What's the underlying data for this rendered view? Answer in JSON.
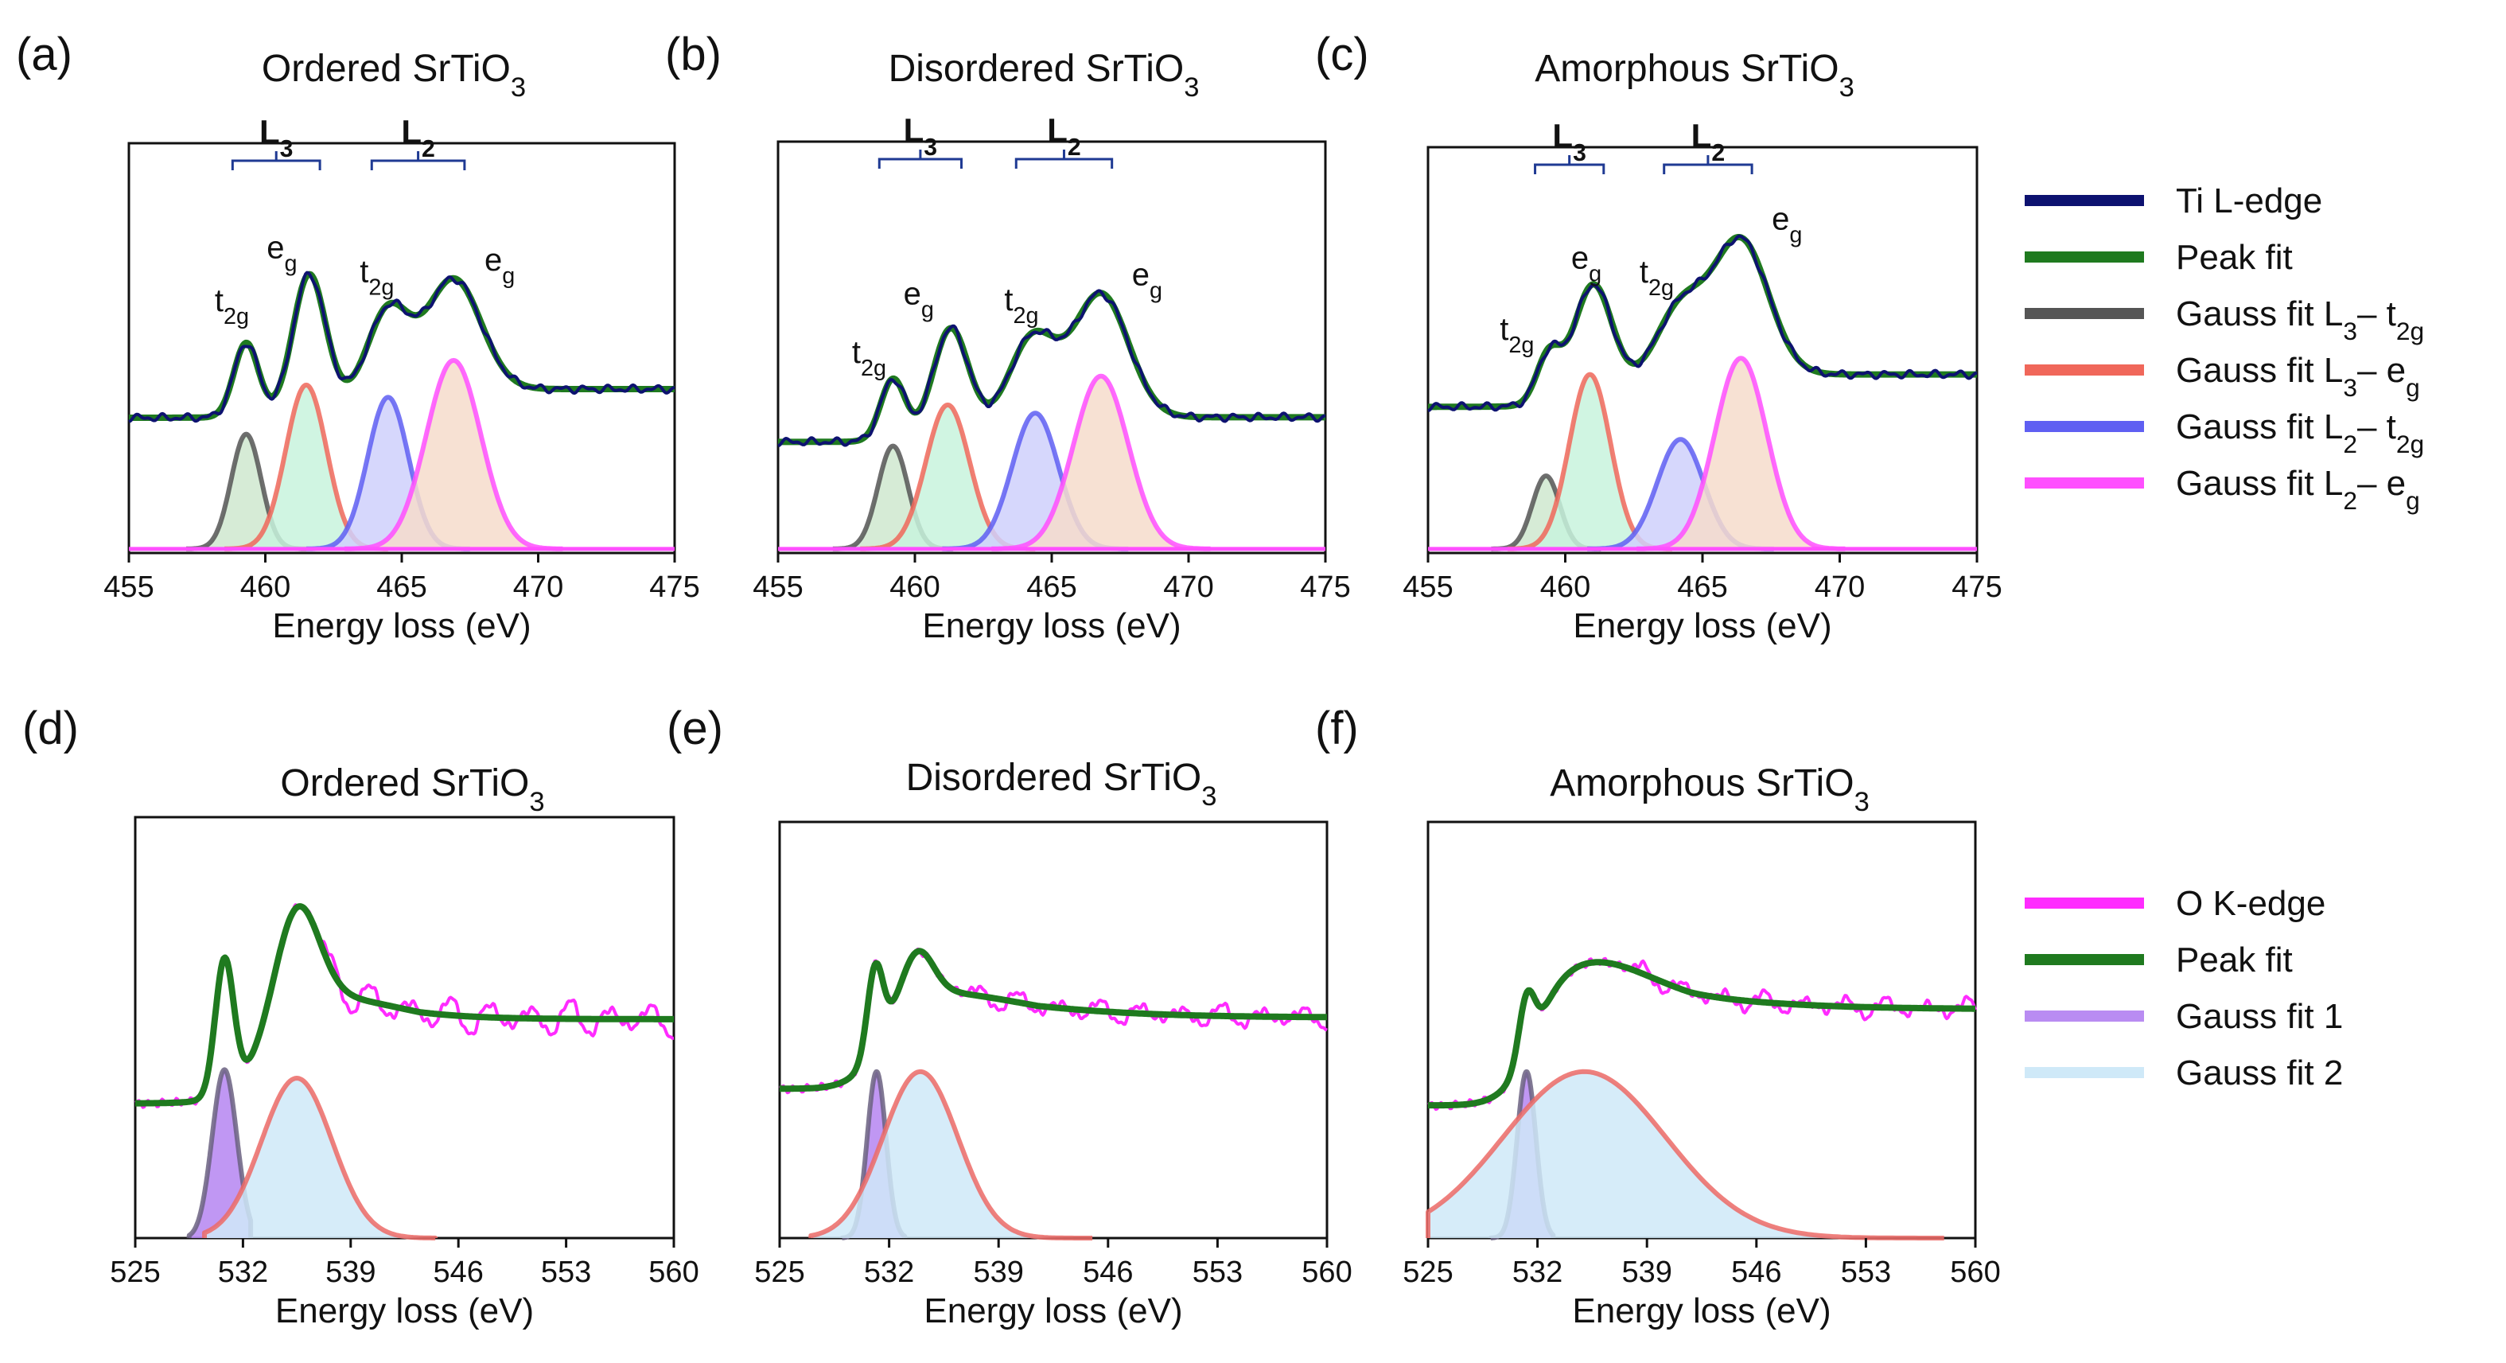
{
  "colors": {
    "ti_edge": "#0d1270",
    "peak_fit": "#1f7a1f",
    "gauss_l3_t2g": "#555555",
    "gauss_l3_eg": "#f0675a",
    "gauss_l2_t2g": "#5f5ff2",
    "gauss_l2_eg": "#ff4fff",
    "o_edge": "#ff2bff",
    "gauss1_line": "#6a6080",
    "gauss1_fill": "#b98cf2",
    "gauss2_fill": "#cfe9f8",
    "gauss2_line": "#ec6a66",
    "fill_l3_t2g": "#cfe7cf",
    "fill_l3_eg": "#c8f3dd",
    "fill_l2_t2g": "#cfd0fb",
    "fill_l2_eg": "#f6dccb"
  },
  "legend_ti": [
    {
      "key": "ti_edge",
      "label": "Ti L-edge"
    },
    {
      "key": "peak_fit",
      "label": "Peak fit"
    },
    {
      "key": "gauss_l3_t2g",
      "label": "Gauss fit L3– t2g"
    },
    {
      "key": "gauss_l3_eg",
      "label": "Gauss fit L3– eg"
    },
    {
      "key": "gauss_l2_t2g",
      "label": "Gauss fit L2– t2g"
    },
    {
      "key": "gauss_l2_eg",
      "label": "Gauss fit L2– eg"
    }
  ],
  "legend_o": [
    {
      "key": "o_edge",
      "label": "O K-edge"
    },
    {
      "key": "peak_fit",
      "label": "Peak fit"
    },
    {
      "key": "gauss1_fill",
      "label": "Gauss fit 1"
    },
    {
      "key": "gauss2_fill",
      "label": "Gauss fit 2"
    }
  ],
  "chart_data": [
    {
      "panel": "(a)",
      "title": "Ordered SrTiO3",
      "type": "line",
      "xlabel": "Energy loss (eV)",
      "ylabel": "",
      "xlim": [
        455,
        475
      ],
      "xticks": [
        455,
        460,
        465,
        470,
        475
      ],
      "edge_labels": [
        "L3",
        "L2"
      ],
      "peak_labels": [
        "t2g",
        "eg",
        "t2g",
        "eg"
      ],
      "spectrum": {
        "baseline": 0.33,
        "post_edge": 0.4,
        "step_center": 462.5,
        "peaks": [
          {
            "center": 459.3,
            "height": 0.18,
            "width": 0.45
          },
          {
            "center": 461.6,
            "height": 0.33,
            "width": 0.6
          },
          {
            "center": 464.5,
            "height": 0.2,
            "width": 0.75
          },
          {
            "center": 466.9,
            "height": 0.27,
            "width": 1.0
          }
        ]
      },
      "gaussians": [
        {
          "component": "L3-t2g",
          "center": 459.3,
          "height": 0.28,
          "sigma": 0.55
        },
        {
          "component": "L3-eg",
          "center": 461.5,
          "height": 0.4,
          "sigma": 0.75
        },
        {
          "component": "L2-t2g",
          "center": 464.5,
          "height": 0.37,
          "sigma": 0.75
        },
        {
          "component": "L2-eg",
          "center": 466.9,
          "height": 0.46,
          "sigma": 1.0
        }
      ]
    },
    {
      "panel": "(b)",
      "title": "Disordered SrTiO3",
      "type": "line",
      "xlabel": "Energy loss (eV)",
      "ylabel": "",
      "xlim": [
        455,
        475
      ],
      "xticks": [
        455,
        460,
        465,
        470,
        475
      ],
      "edge_labels": [
        "L3",
        "L2"
      ],
      "peak_labels": [
        "t2g",
        "eg",
        "t2g",
        "eg"
      ],
      "spectrum": {
        "baseline": 0.27,
        "post_edge": 0.33,
        "step_center": 462.3,
        "peaks": [
          {
            "center": 459.2,
            "height": 0.15,
            "width": 0.45
          },
          {
            "center": 461.3,
            "height": 0.26,
            "width": 0.65
          },
          {
            "center": 464.3,
            "height": 0.2,
            "width": 0.85
          },
          {
            "center": 466.8,
            "height": 0.3,
            "width": 1.0
          }
        ]
      },
      "gaussians": [
        {
          "component": "L3-t2g",
          "center": 459.2,
          "height": 0.25,
          "sigma": 0.55
        },
        {
          "component": "L3-eg",
          "center": 461.2,
          "height": 0.35,
          "sigma": 0.8
        },
        {
          "component": "L2-t2g",
          "center": 464.4,
          "height": 0.33,
          "sigma": 0.85
        },
        {
          "component": "L2-eg",
          "center": 466.8,
          "height": 0.42,
          "sigma": 1.0
        }
      ]
    },
    {
      "panel": "(c)",
      "title": "Amorphous SrTiO3",
      "type": "line",
      "xlabel": "Energy loss (eV)",
      "ylabel": "",
      "xlim": [
        455,
        475
      ],
      "xticks": [
        455,
        460,
        465,
        470,
        475
      ],
      "edge_labels": [
        "L3",
        "L2"
      ],
      "peak_labels": [
        "t2g",
        "eg",
        "t2g",
        "eg"
      ],
      "spectrum": {
        "baseline": 0.36,
        "post_edge": 0.44,
        "step_center": 462.0,
        "peaks": [
          {
            "center": 459.4,
            "height": 0.12,
            "width": 0.45
          },
          {
            "center": 461.0,
            "height": 0.28,
            "width": 0.7
          },
          {
            "center": 464.2,
            "height": 0.17,
            "width": 0.9
          },
          {
            "center": 466.4,
            "height": 0.33,
            "width": 1.0
          }
        ]
      },
      "gaussians": [
        {
          "component": "L3-t2g",
          "center": 459.3,
          "height": 0.18,
          "sigma": 0.5
        },
        {
          "component": "L3-eg",
          "center": 460.9,
          "height": 0.43,
          "sigma": 0.75
        },
        {
          "component": "L2-t2g",
          "center": 464.2,
          "height": 0.27,
          "sigma": 0.85
        },
        {
          "component": "L2-eg",
          "center": 466.4,
          "height": 0.47,
          "sigma": 0.95
        }
      ]
    },
    {
      "panel": "(d)",
      "title": "Ordered SrTiO3",
      "type": "line",
      "xlabel": "Energy loss (eV)",
      "ylabel": "",
      "xlim": [
        525,
        560
      ],
      "xticks": [
        525,
        532,
        539,
        546,
        553,
        560
      ],
      "spectrum": {
        "baseline": 0.32,
        "post_edge": 0.6,
        "step_center": 533.5,
        "step_width": 1.2,
        "post_edge_decay": 0.08,
        "post_edge_decay_width": 3,
        "peaks": [
          {
            "center": 530.8,
            "height": 0.32,
            "width": 0.6
          },
          {
            "center": 535.5,
            "height": 0.24,
            "width": 1.4
          }
        ],
        "oscillation": {
          "start": 537,
          "amplitude": 0.045,
          "period": 2.6
        }
      },
      "gaussians": [
        {
          "component": "fit1",
          "center": 530.8,
          "height": 0.4,
          "sigma": 0.8,
          "range": [
            528.5,
            532.5
          ]
        },
        {
          "component": "fit2",
          "center": 535.5,
          "height": 0.38,
          "sigma": 2.3,
          "range": [
            529.5,
            544.5
          ]
        }
      ]
    },
    {
      "panel": "(e)",
      "title": "Disordered SrTiO3",
      "type": "line",
      "xlabel": "Energy loss (eV)",
      "ylabel": "",
      "xlim": [
        525,
        560
      ],
      "xticks": [
        525,
        532,
        539,
        546,
        553,
        560
      ],
      "spectrum": {
        "baseline": 0.36,
        "post_edge": 0.62,
        "step_center": 531.5,
        "step_width": 1.0,
        "post_edge_decay": 0.09,
        "post_edge_decay_width": 5,
        "peaks": [
          {
            "center": 531.1,
            "height": 0.2,
            "width": 0.5
          },
          {
            "center": 533.8,
            "height": 0.11,
            "width": 1.0
          }
        ],
        "oscillation": {
          "start": 537,
          "amplitude": 0.028,
          "period": 2.6
        }
      },
      "gaussians": [
        {
          "component": "fit1",
          "center": 531.2,
          "height": 0.4,
          "sigma": 0.6,
          "range": [
            529.0,
            533.0
          ]
        },
        {
          "component": "fit2",
          "center": 534.0,
          "height": 0.4,
          "sigma": 2.4,
          "range": [
            527.0,
            545.0
          ]
        }
      ]
    },
    {
      "panel": "(f)",
      "title": "Amorphous SrTiO3",
      "type": "line",
      "xlabel": "Energy loss (eV)",
      "ylabel": "",
      "xlim": [
        525,
        560
      ],
      "xticks": [
        525,
        532,
        539,
        546,
        553,
        560
      ],
      "spectrum": {
        "baseline": 0.32,
        "post_edge": 0.66,
        "step_center": 531.8,
        "step_width": 1.0,
        "post_edge_decay": 0.11,
        "post_edge_decay_width": 5,
        "peaks": [
          {
            "center": 531.3,
            "height": 0.14,
            "width": 0.5
          },
          {
            "center": 536.0,
            "height": 0.04,
            "width": 3.0
          }
        ],
        "oscillation": {
          "start": 538,
          "amplitude": 0.025,
          "period": 2.6
        }
      },
      "gaussians": [
        {
          "component": "fit1",
          "center": 531.3,
          "height": 0.4,
          "sigma": 0.6,
          "range": [
            529.0,
            533.0
          ]
        },
        {
          "component": "fit2",
          "center": 535.0,
          "height": 0.4,
          "sigma": 5.2,
          "range": [
            525.0,
            558.0
          ]
        }
      ]
    }
  ]
}
